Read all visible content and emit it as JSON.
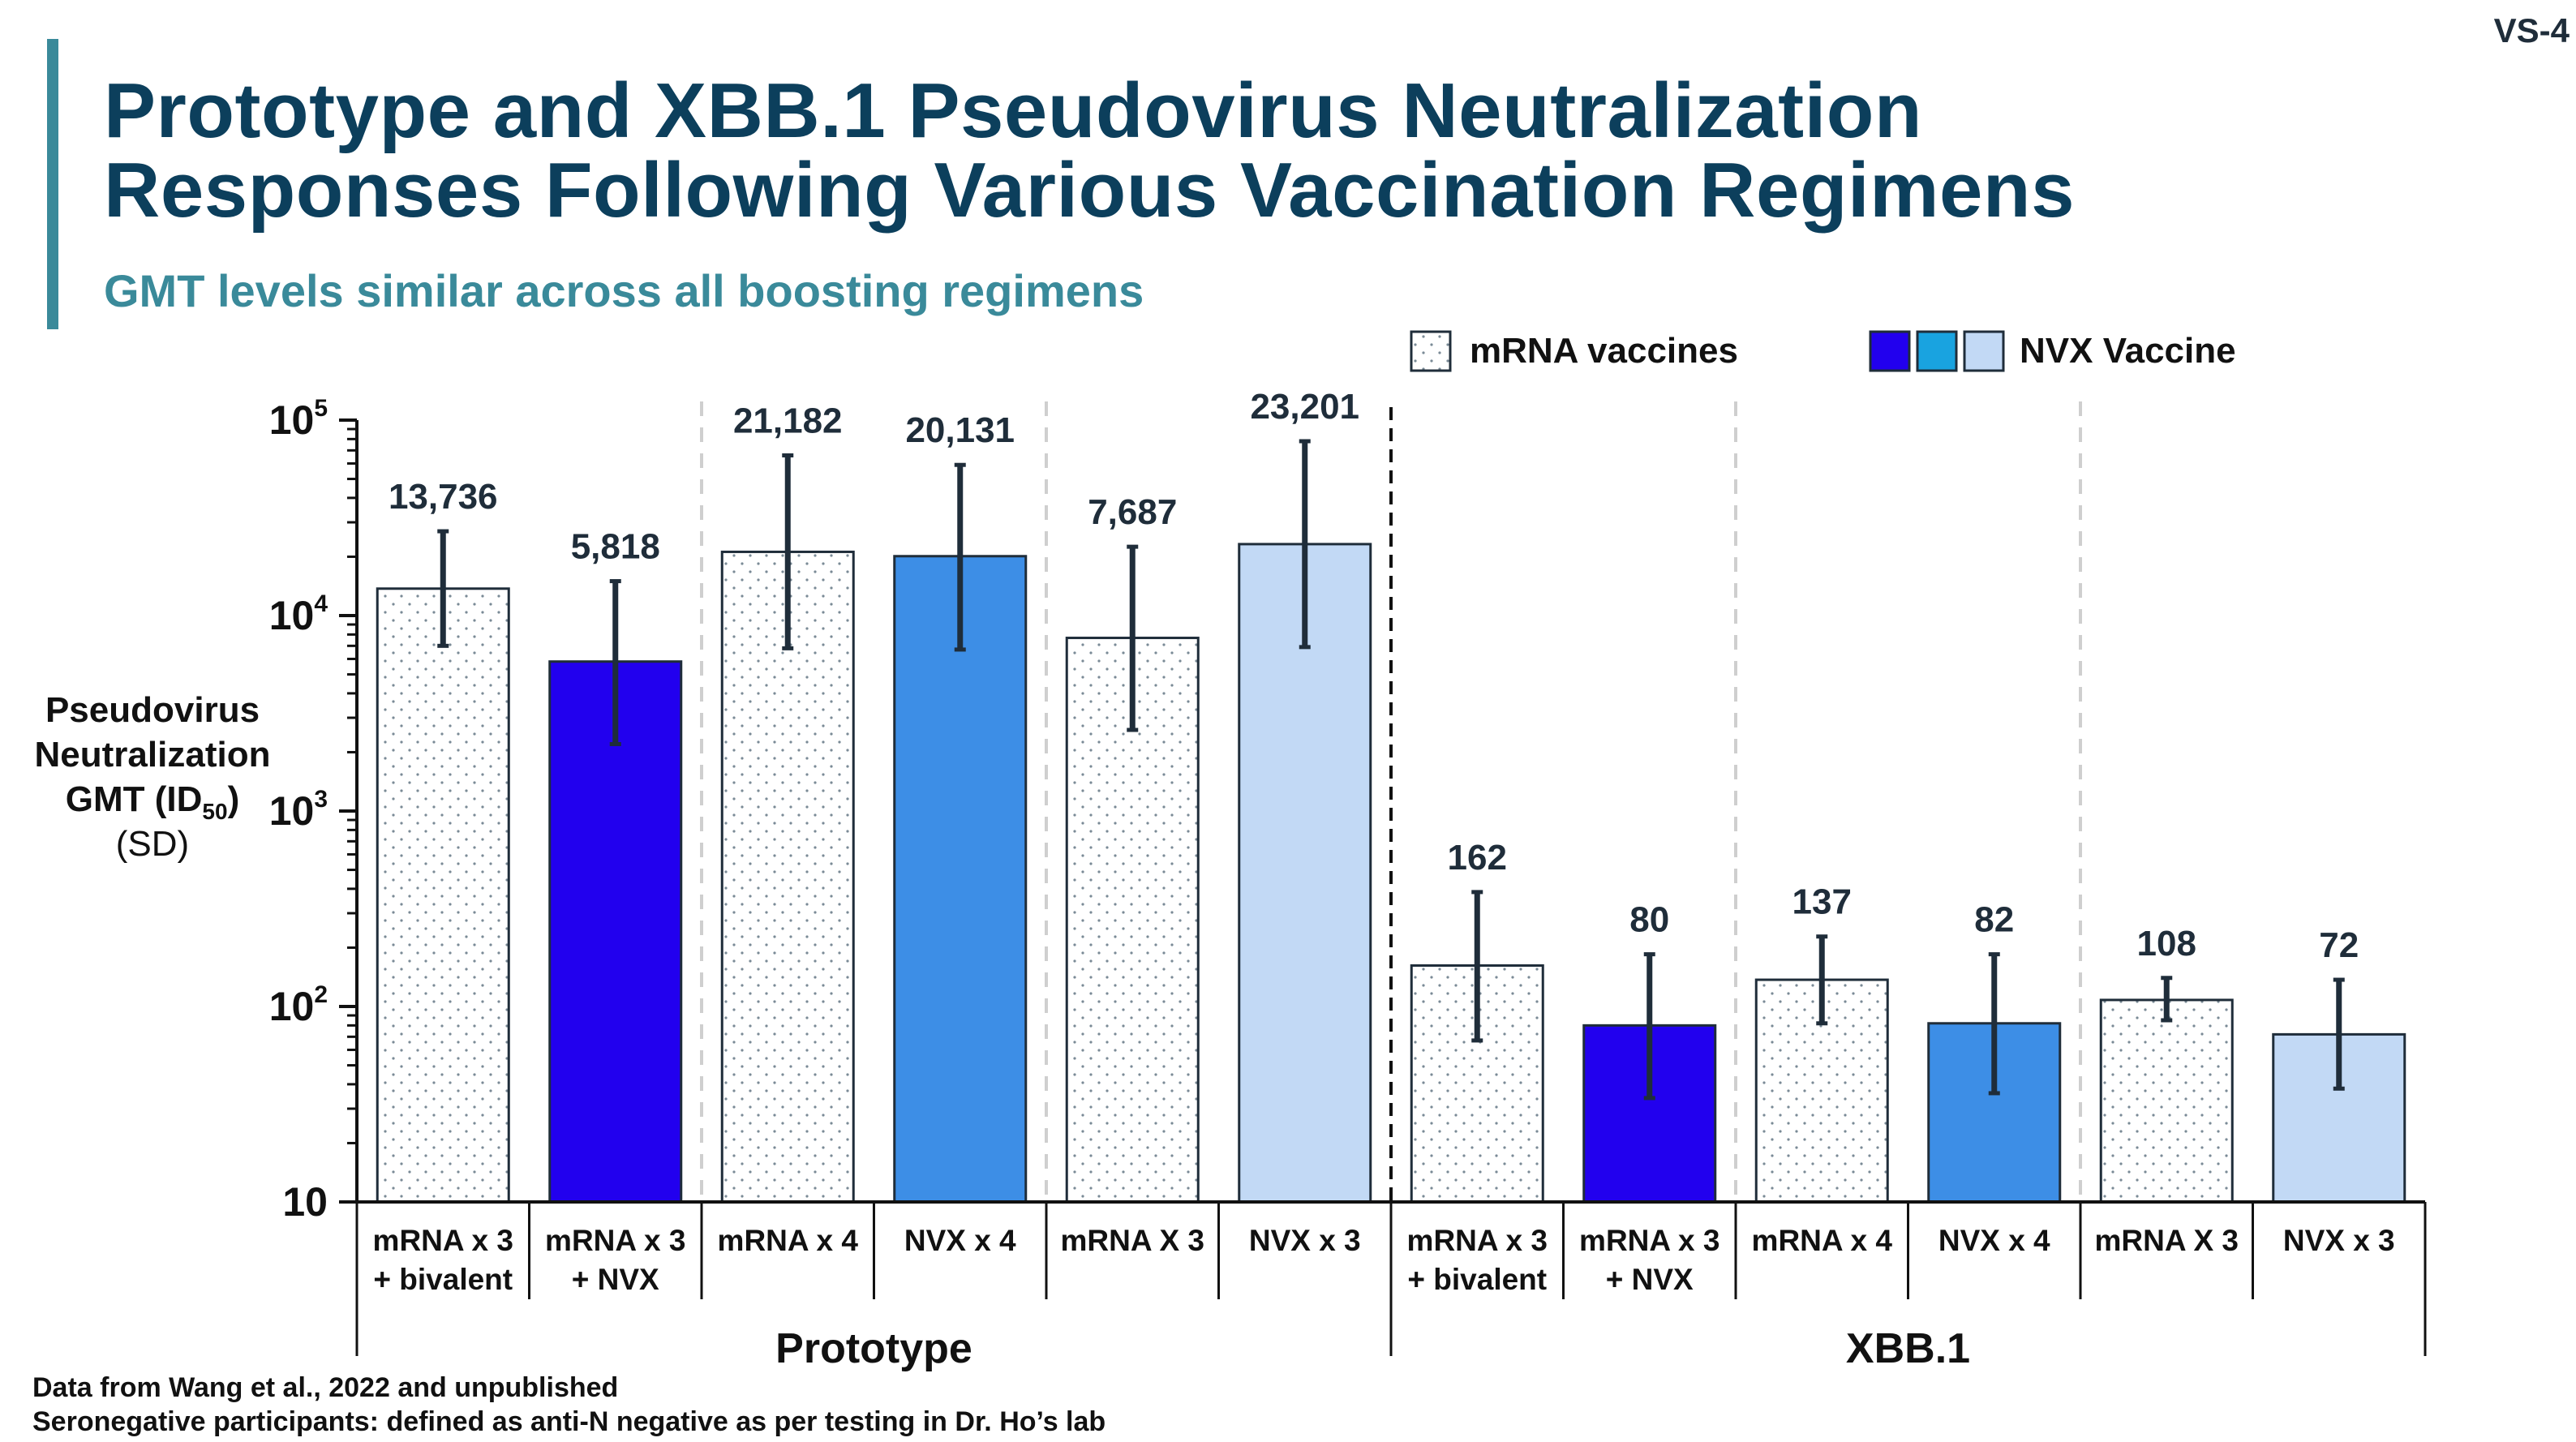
{
  "slide": {
    "number": "VS-4",
    "title_line1": "Prototype and XBB.1 Pseudovirus Neutralization",
    "title_line2": "Responses Following Various Vaccination Regimens",
    "subtitle": "GMT levels similar across all boosting regimens",
    "accent_color": "#3a8a9a",
    "title_color": "#0c3f5c"
  },
  "footnotes": [
    "Data from Wang et al., 2022 and unpublished",
    "Seronegative participants: defined as anti-N negative as per testing in Dr. Ho’s lab"
  ],
  "chart_data": {
    "type": "bar",
    "yscale": "log",
    "ylim": [
      10,
      100000
    ],
    "grid": false,
    "ylabel": {
      "line1": "Pseudovirus",
      "line2": "Neutralization",
      "line3_main": "GMT (ID",
      "line3_sub": "50",
      "line3_end": ")",
      "line4": "(SD)"
    },
    "yticks": [
      {
        "value": 10,
        "base": "10",
        "exp": ""
      },
      {
        "value": 100,
        "base": "10",
        "exp": "2"
      },
      {
        "value": 1000,
        "base": "10",
        "exp": "3"
      },
      {
        "value": 10000,
        "base": "10",
        "exp": "4"
      },
      {
        "value": 100000,
        "base": "10",
        "exp": "5"
      }
    ],
    "legend": {
      "position": "top-right",
      "entries": [
        {
          "label": "mRNA vaccines",
          "style": "dotted"
        },
        {
          "label": "NVX Vaccine",
          "style": "solid",
          "colors": [
            "#2200ee",
            "#19a3e0",
            "#c2d9f5"
          ]
        }
      ]
    },
    "colors": {
      "mrna_dotted": "#ffffff",
      "nvx_dark": "#2200ee",
      "nvx_mid": "#3d8ee6",
      "nvx_light": "#c2d9f5"
    },
    "groups": [
      {
        "label": "Prototype",
        "bars": [
          {
            "category_line1": "mRNA x 3",
            "category_line2": "+ bivalent",
            "value": 13736,
            "label": "13,736",
            "err_low": 7000,
            "err_high": 27000,
            "fill": "dotted"
          },
          {
            "category_line1": "mRNA x 3",
            "category_line2": "+ NVX",
            "value": 5818,
            "label": "5,818",
            "err_low": 2200,
            "err_high": 15000,
            "fill": "nvx_dark"
          },
          {
            "category_line1": "mRNA x 4",
            "category_line2": "",
            "value": 21182,
            "label": "21,182",
            "err_low": 6800,
            "err_high": 66000,
            "fill": "dotted"
          },
          {
            "category_line1": "NVX x 4",
            "category_line2": "",
            "value": 20131,
            "label": "20,131",
            "err_low": 6700,
            "err_high": 59000,
            "fill": "nvx_mid"
          },
          {
            "category_line1": "mRNA X 3",
            "category_line2": "",
            "value": 7687,
            "label": "7,687",
            "err_low": 2600,
            "err_high": 22500,
            "fill": "dotted"
          },
          {
            "category_line1": "NVX x 3",
            "category_line2": "",
            "value": 23201,
            "label": "23,201",
            "err_low": 6900,
            "err_high": 78000,
            "fill": "nvx_light"
          }
        ]
      },
      {
        "label": "XBB.1",
        "bars": [
          {
            "category_line1": "mRNA x 3",
            "category_line2": "+ bivalent",
            "value": 162,
            "label": "162",
            "err_low": 67,
            "err_high": 385,
            "fill": "dotted"
          },
          {
            "category_line1": "mRNA x 3",
            "category_line2": "+ NVX",
            "value": 80,
            "label": "80",
            "err_low": 34,
            "err_high": 185,
            "fill": "nvx_dark"
          },
          {
            "category_line1": "mRNA x 4",
            "category_line2": "",
            "value": 137,
            "label": "137",
            "err_low": 82,
            "err_high": 228,
            "fill": "dotted"
          },
          {
            "category_line1": "NVX x 4",
            "category_line2": "",
            "value": 82,
            "label": "82",
            "err_low": 36,
            "err_high": 185,
            "fill": "nvx_mid"
          },
          {
            "category_line1": "mRNA X 3",
            "category_line2": "",
            "value": 108,
            "label": "108",
            "err_low": 85,
            "err_high": 140,
            "fill": "dotted"
          },
          {
            "category_line1": "NVX x 3",
            "category_line2": "",
            "value": 72,
            "label": "72",
            "err_low": 38,
            "err_high": 137,
            "fill": "nvx_light"
          }
        ]
      }
    ]
  }
}
